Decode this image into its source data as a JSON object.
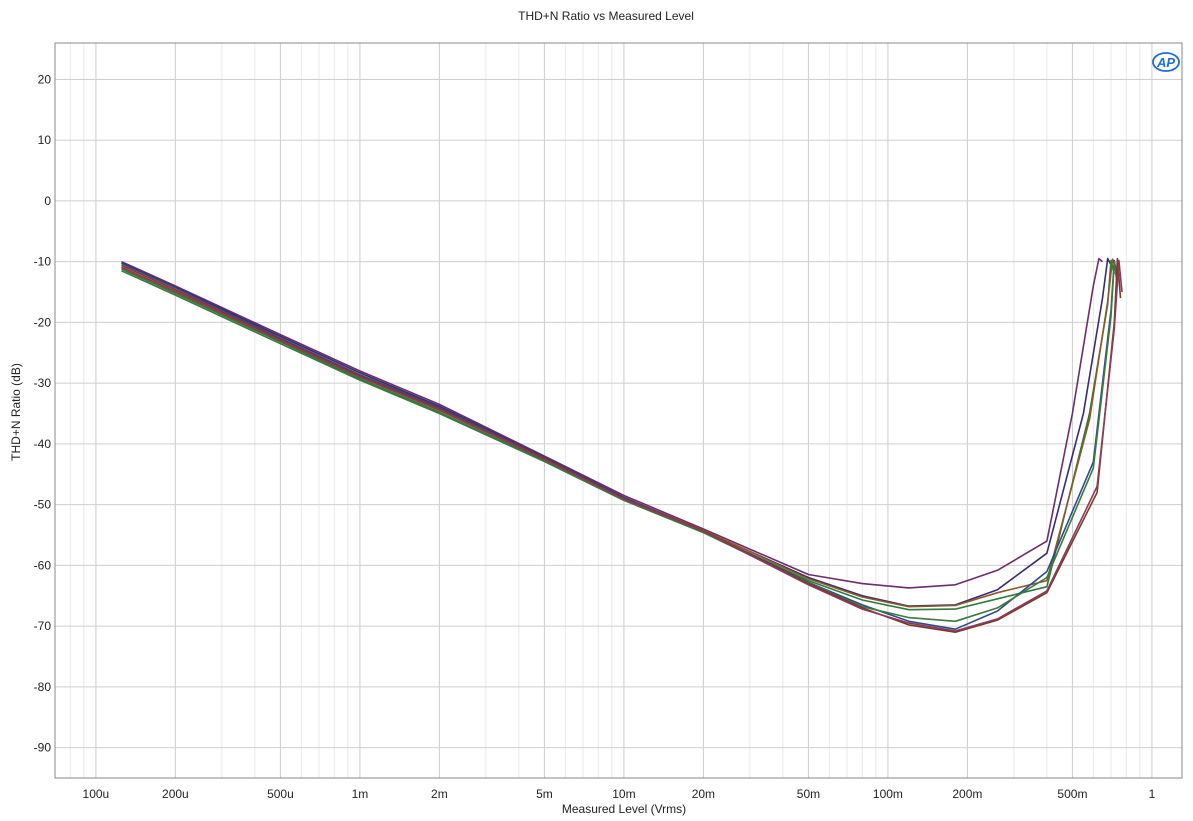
{
  "chart_data": {
    "type": "line",
    "title": "THD+N Ratio vs Measured Level",
    "xlabel": "Measured Level (Vrms)",
    "ylabel": "THD+N Ratio (dB)",
    "xscale": "log",
    "xlim": [
      7e-05,
      1.3
    ],
    "ylim": [
      -95,
      26
    ],
    "grid": true,
    "x_ticks": [
      {
        "value": 0.0001,
        "label": "100u"
      },
      {
        "value": 0.0002,
        "label": "200u"
      },
      {
        "value": 0.0005,
        "label": "500u"
      },
      {
        "value": 0.001,
        "label": "1m"
      },
      {
        "value": 0.002,
        "label": "2m"
      },
      {
        "value": 0.005,
        "label": "5m"
      },
      {
        "value": 0.01,
        "label": "10m"
      },
      {
        "value": 0.02,
        "label": "20m"
      },
      {
        "value": 0.05,
        "label": "50m"
      },
      {
        "value": 0.1,
        "label": "100m"
      },
      {
        "value": 0.2,
        "label": "200m"
      },
      {
        "value": 0.5,
        "label": "500m"
      },
      {
        "value": 1,
        "label": "1"
      }
    ],
    "y_ticks": [
      {
        "value": 20,
        "label": "20"
      },
      {
        "value": 10,
        "label": "10"
      },
      {
        "value": 0,
        "label": "0"
      },
      {
        "value": -10,
        "label": "-10"
      },
      {
        "value": -20,
        "label": "-20"
      },
      {
        "value": -30,
        "label": "-30"
      },
      {
        "value": -40,
        "label": "-40"
      },
      {
        "value": -50,
        "label": "-50"
      },
      {
        "value": -60,
        "label": "-60"
      },
      {
        "value": -70,
        "label": "-70"
      },
      {
        "value": -80,
        "label": "-80"
      },
      {
        "value": -90,
        "label": "-90"
      }
    ],
    "logo_text": "AP",
    "series": [
      {
        "color": "#6b2d6b",
        "x": [
          0.000125,
          0.0002,
          0.0005,
          0.001,
          0.002,
          0.005,
          0.01,
          0.02,
          0.05,
          0.08,
          0.12,
          0.18,
          0.26,
          0.4,
          0.5,
          0.6,
          0.63,
          0.65
        ],
        "y": [
          -10,
          -14,
          -22,
          -28,
          -33.5,
          -42,
          -48.5,
          -54,
          -61.5,
          -63,
          -63.7,
          -63.2,
          -60.8,
          -56,
          -35,
          -14,
          -9.5,
          -10
        ]
      },
      {
        "color": "#3c2a72",
        "x": [
          0.000125,
          0.0002,
          0.0005,
          0.001,
          0.002,
          0.005,
          0.01,
          0.02,
          0.05,
          0.08,
          0.12,
          0.18,
          0.26,
          0.4,
          0.55,
          0.65,
          0.68,
          0.7
        ],
        "y": [
          -10.2,
          -14.2,
          -22.3,
          -28.3,
          -33.8,
          -42.2,
          -48.8,
          -54.3,
          -62,
          -65,
          -66.7,
          -66.5,
          -64,
          -58,
          -35,
          -16,
          -9.5,
          -10.5
        ]
      },
      {
        "color": "#2e7a3c",
        "x": [
          0.000125,
          0.0002,
          0.0005,
          0.001,
          0.002,
          0.005,
          0.01,
          0.02,
          0.05,
          0.08,
          0.12,
          0.18,
          0.26,
          0.4,
          0.58,
          0.68,
          0.7,
          0.72
        ],
        "y": [
          -11.2,
          -15.2,
          -23.2,
          -29.3,
          -34.8,
          -42.8,
          -49.2,
          -54.5,
          -62.5,
          -65.7,
          -67.3,
          -67.2,
          -65.5,
          -63.5,
          -35,
          -17,
          -9.8,
          -12
        ]
      },
      {
        "color": "#8a5a2b",
        "x": [
          0.000125,
          0.0002,
          0.0005,
          0.001,
          0.002,
          0.005,
          0.01,
          0.02,
          0.05,
          0.08,
          0.12,
          0.18,
          0.26,
          0.4,
          0.58,
          0.68,
          0.71,
          0.73
        ],
        "y": [
          -11,
          -15,
          -23,
          -29,
          -34.5,
          -42.5,
          -49,
          -54.2,
          -62.2,
          -65.2,
          -66.8,
          -66.6,
          -64.5,
          -62.5,
          -36,
          -16.5,
          -9.6,
          -11
        ]
      },
      {
        "color": "#2e4a8a",
        "x": [
          0.000125,
          0.0002,
          0.0005,
          0.001,
          0.002,
          0.005,
          0.01,
          0.02,
          0.05,
          0.08,
          0.12,
          0.18,
          0.26,
          0.4,
          0.6,
          0.7,
          0.72,
          0.74
        ],
        "y": [
          -10.3,
          -14.3,
          -22.6,
          -28.6,
          -34,
          -42.3,
          -48.9,
          -54.4,
          -62.8,
          -66.5,
          -69.2,
          -70.5,
          -67.5,
          -61,
          -43,
          -18,
          -9.8,
          -13
        ]
      },
      {
        "color": "#3a7a3a",
        "x": [
          0.000125,
          0.0002,
          0.0005,
          0.001,
          0.002,
          0.005,
          0.01,
          0.02,
          0.05,
          0.08,
          0.12,
          0.18,
          0.26,
          0.4,
          0.6,
          0.7,
          0.72,
          0.74
        ],
        "y": [
          -11.5,
          -15.5,
          -23.5,
          -29.5,
          -35,
          -42.9,
          -49.3,
          -54.6,
          -62.9,
          -66.8,
          -68.6,
          -69.2,
          -67,
          -62,
          -44,
          -19,
          -10,
          -14
        ]
      },
      {
        "color": "#7a3a2a",
        "x": [
          0.000125,
          0.0002,
          0.0005,
          0.001,
          0.002,
          0.005,
          0.01,
          0.02,
          0.05,
          0.08,
          0.12,
          0.18,
          0.26,
          0.4,
          0.62,
          0.72,
          0.74,
          0.76
        ],
        "y": [
          -10.6,
          -14.6,
          -22.8,
          -28.8,
          -34.2,
          -42.4,
          -49,
          -54.3,
          -63,
          -67,
          -69.8,
          -71,
          -69,
          -64.5,
          -48,
          -20,
          -9.5,
          -16
        ]
      },
      {
        "color": "#8a3a5a",
        "x": [
          0.000125,
          0.0002,
          0.0005,
          0.001,
          0.002,
          0.005,
          0.01,
          0.02,
          0.05,
          0.08,
          0.12,
          0.18,
          0.26,
          0.4,
          0.62,
          0.72,
          0.75,
          0.77
        ],
        "y": [
          -10.9,
          -14.9,
          -23,
          -29,
          -34.4,
          -42.6,
          -49.1,
          -54.4,
          -63.2,
          -67.2,
          -69.5,
          -70.8,
          -68.8,
          -64.2,
          -47,
          -21,
          -9.8,
          -15
        ]
      }
    ]
  }
}
